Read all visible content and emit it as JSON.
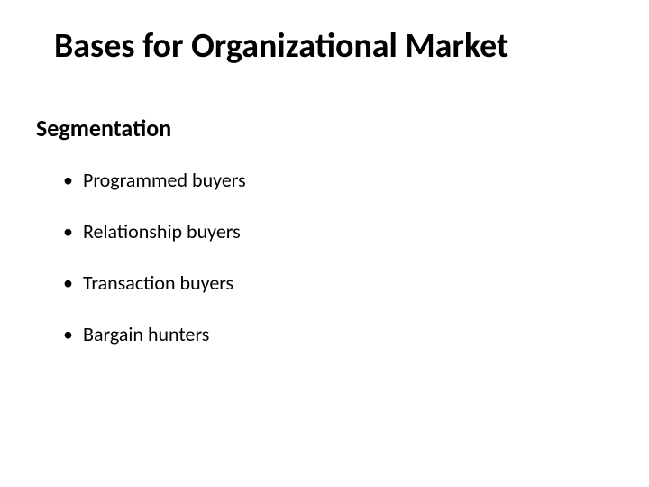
{
  "slide": {
    "title": "Bases for Organizational Market",
    "subtitle": "Segmentation",
    "bullets": [
      "Programmed buyers",
      "Relationship buyers",
      "Transaction buyers",
      "Bargain hunters"
    ]
  },
  "styling": {
    "background_color": "#ffffff",
    "text_color": "#000000",
    "title_fontsize": 38,
    "title_fontweight": 700,
    "subtitle_fontsize": 26,
    "subtitle_fontweight": 700,
    "bullet_fontsize": 22,
    "bullet_fontweight": 400,
    "font_family": "Calibri"
  }
}
